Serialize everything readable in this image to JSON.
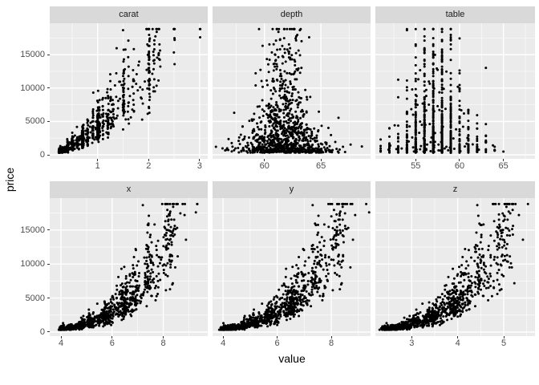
{
  "page": {
    "background": "#ffffff",
    "kind": "ggplot2 faceted scatter plot, 2 rows x 3 columns, free x scales"
  },
  "chart_data": {
    "type": "scatter",
    "title": "",
    "xlabel": "value",
    "ylabel": "price",
    "legend": "none",
    "grid": "white major and minor gridlines on grey panels",
    "point_color": "#000000",
    "point_radius_px": 1.5,
    "panel_bg": "#ebebeb",
    "strip_bg": "#d9d9d9",
    "strip_text_color": "#1a1a1a",
    "tick_text_color": "#4d4d4d",
    "axis_title_color": "#000000",
    "ylim": [
      -600,
      19700
    ],
    "yticks": [
      0,
      5000,
      10000,
      15000
    ],
    "y_minor": [
      2500,
      7500,
      12500,
      17500
    ],
    "n_points_per_panel": 1000,
    "note": "Sample of ~1000 diamonds; every panel plots price (USD, shared y axis 0-~18800) against one variable; price tops out at ~18800 forming a ceiling of points",
    "facets": [
      {
        "label": "carat",
        "var": "carat",
        "xlim": [
          0.06,
          3.16
        ],
        "xticks": [
          1,
          2,
          3
        ],
        "x_minor": [
          0.5,
          1.5,
          2.5
        ],
        "x_data_range": [
          0.2,
          3.01
        ],
        "trend": "steep convex increase from (0.2,~350) to (3,~13300); dense vertical bands at popular sizes 0.3/0.5/0.7/1.0/1.5/2.0; cluster at price ceiling near carat 1.5-2.2"
      },
      {
        "label": "depth",
        "var": "depth",
        "xlim": [
          55.4,
          69.4
        ],
        "xticks": [
          60,
          65
        ],
        "x_minor": [
          57.5,
          62.5,
          67.5
        ],
        "x_data_range": [
          55.7,
          68.9
        ],
        "trend": "no trend with price; bell-shaped mass centred ~61.8, very dense below price 3000, spread narrows to ~59-65 at high price"
      },
      {
        "label": "table",
        "var": "table",
        "xlim": [
          50.4,
          68.6
        ],
        "xticks": [
          55,
          60,
          65
        ],
        "x_minor": [
          52.5,
          57.5,
          62.5,
          67.5
        ],
        "x_data_range": [
          51,
          68.3
        ],
        "trend": "discrete vertical columns at integer table values, densest 54-62; outliers at 51-52 and 65-68; no price trend"
      },
      {
        "label": "x",
        "var": "x",
        "xlim": [
          3.56,
          9.74
        ],
        "xticks": [
          4,
          6,
          8
        ],
        "x_minor": [
          5,
          7,
          9
        ],
        "x_data_range": [
          3.86,
          9.42
        ],
        "trend": "tight convex increasing curve from (4,~400) through (6,~3000) to (9,~18000); isolated point near (9.4, 13300)"
      },
      {
        "label": "y",
        "var": "y",
        "xlim": [
          3.61,
          9.45
        ],
        "xticks": [
          4,
          6,
          8
        ],
        "x_minor": [
          5,
          7,
          9
        ],
        "x_data_range": [
          3.9,
          9.3
        ],
        "trend": "same convex increasing curve as panel x"
      },
      {
        "label": "z",
        "var": "z",
        "xlim": [
          2.21,
          5.68
        ],
        "xticks": [
          3,
          4,
          5
        ],
        "x_minor": [
          2.5,
          3.5,
          4.5,
          5.5
        ],
        "x_data_range": [
          2.3,
          5.65
        ],
        "trend": "same convex increasing curve on compressed scale (z ~ 0.62 * x)"
      }
    ],
    "generator": {
      "seed": 20240613,
      "n": 1000,
      "carat": {
        "continuous_frac": 0.32,
        "cont_min": 0.24,
        "cont_span": 2.0,
        "cont_pow": 2.8,
        "jitter": 0.022,
        "magnets": [
          [
            0.3,
            9
          ],
          [
            0.31,
            4
          ],
          [
            0.33,
            3
          ],
          [
            0.4,
            7
          ],
          [
            0.41,
            3
          ],
          [
            0.5,
            9
          ],
          [
            0.51,
            4
          ],
          [
            0.6,
            4
          ],
          [
            0.7,
            9
          ],
          [
            0.71,
            4
          ],
          [
            0.8,
            4
          ],
          [
            0.9,
            4
          ],
          [
            1.0,
            11
          ],
          [
            1.01,
            5
          ],
          [
            1.03,
            3
          ],
          [
            1.1,
            3
          ],
          [
            1.2,
            5
          ],
          [
            1.25,
            2
          ],
          [
            1.3,
            2
          ],
          [
            1.5,
            7
          ],
          [
            1.51,
            3
          ],
          [
            1.6,
            1.5
          ],
          [
            1.7,
            2
          ],
          [
            2.0,
            5
          ],
          [
            2.01,
            2.5
          ],
          [
            2.1,
            1
          ],
          [
            2.2,
            1.2
          ],
          [
            2.5,
            0.7
          ],
          [
            3.01,
            0.3
          ]
        ]
      },
      "price": {
        "base": 4300,
        "exp": 1.62,
        "sigma": 0.33,
        "min": 330,
        "max": 18823
      },
      "dims": {
        "x_coef": 6.45,
        "x_noise": 0.013,
        "y_noise": 0.012,
        "z_ratio": 0.605,
        "z_noise": 0.016
      },
      "depth": {
        "mean": 61.75,
        "sigma_base": 0.95,
        "sigma_extra": 1.5,
        "price_decay": 3800,
        "min": 55.7,
        "max": 68.9
      },
      "table": {
        "mean": 57.4,
        "sigma_base": 1.35,
        "sigma_extra": 1.5,
        "price_decay": 4200,
        "wide_frac": 0.012,
        "wide_sigma": 4.5,
        "round_frac": 0.9,
        "min": 51,
        "max": 68.3
      }
    }
  }
}
